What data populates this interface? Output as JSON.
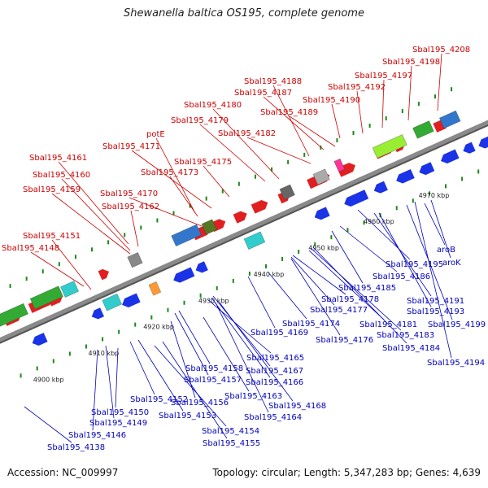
{
  "title": "Shewanella baltica OS195, complete genome",
  "accession": "Accession: NC_009997",
  "stats": "Topology: circular; Length: 5,347,283 bp; Genes: 4,639",
  "colors": {
    "backbone": "#8a8a8a",
    "label_top": "#cc0000",
    "label_bottom": "#0000bb",
    "forward": "#e02020",
    "reverse": "#1a33e6",
    "tick": "#1a8a1a"
  },
  "ticks": [
    "4900 kbp",
    "4910 kbp",
    "4920 kbp",
    "4930 kbp",
    "4940 kbp",
    "4950 kbp",
    "4960 kbp",
    "4970 kbp"
  ],
  "top_labels": [
    "Sbal195_4148",
    "Sbal195_4151",
    "Sbal195_4159",
    "Sbal195_4160",
    "Sbal195_4161",
    "Sbal195_4162",
    "Sbal195_4170",
    "Sbal195_4173",
    "potE",
    "Sbal195_4171",
    "Sbal195_4175",
    "Sbal195_4179",
    "Sbal195_4180",
    "Sbal195_4182",
    "Sbal195_4188",
    "Sbal195_4187",
    "Sbal195_4189",
    "Sbal195_4190",
    "Sbal195_4192",
    "Sbal195_4197",
    "Sbal195_4198",
    "Sbal195_4208"
  ],
  "bottom_labels": [
    "Sbal195_4138",
    "Sbal195_4146",
    "Sbal195_4149",
    "Sbal195_4150",
    "Sbal195_4152",
    "Sbal195_4153",
    "Sbal195_4154",
    "Sbal195_4155",
    "Sbal195_4156",
    "Sbal195_4157",
    "Sbal195_4158",
    "Sbal195_4163",
    "Sbal195_4164",
    "Sbal195_4165",
    "Sbal195_4166",
    "Sbal195_4167",
    "Sbal195_4168",
    "Sbal195_4169",
    "Sbal195_4174",
    "Sbal195_4176",
    "Sbal195_4177",
    "Sbal195_4178",
    "Sbal195_4181",
    "Sbal195_4183",
    "Sbal195_4184",
    "Sbal195_4185",
    "Sbal195_4186",
    "Sbal195_4191",
    "Sbal195_4193",
    "Sbal195_4194",
    "Sbal195_4195",
    "Sbal195_4199",
    "aroB",
    "aroK"
  ]
}
